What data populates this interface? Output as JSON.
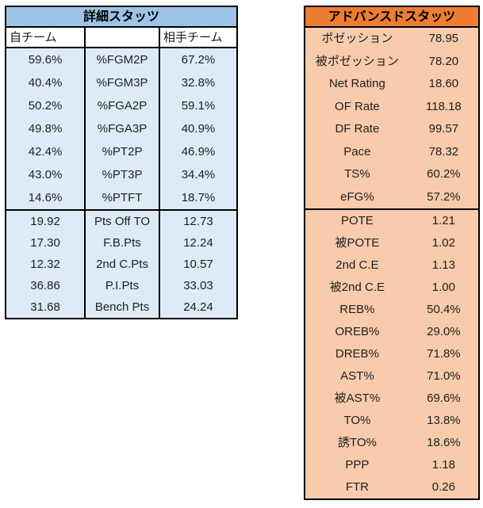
{
  "chart_data": [
    {
      "type": "table",
      "title": "詳細スタッツ",
      "column_headers": [
        "自チーム",
        "",
        "相手チーム"
      ],
      "colors": {
        "header_bg": "#9DC3E6",
        "subheader_bg": "#FFFFFF",
        "row_bg": "#DEEBF7",
        "border": "#000000",
        "header_text": "#000000",
        "text": "#202020"
      },
      "sections": [
        {
          "rows": [
            [
              "59.6%",
              "%FGM2P",
              "67.2%"
            ],
            [
              "40.4%",
              "%FGM3P",
              "32.8%"
            ],
            [
              "50.2%",
              "%FGA2P",
              "59.1%"
            ],
            [
              "49.8%",
              "%FGA3P",
              "40.9%"
            ],
            [
              "42.4%",
              "%PT2P",
              "46.9%"
            ],
            [
              "43.0%",
              "%PT3P",
              "34.4%"
            ],
            [
              "14.6%",
              "%PTFT",
              "18.7%"
            ]
          ]
        },
        {
          "rows": [
            [
              "19.92",
              "Pts Off TO",
              "12.73"
            ],
            [
              "17.30",
              "F.B.Pts",
              "12.24"
            ],
            [
              "12.32",
              "2nd C.Pts",
              "10.57"
            ],
            [
              "36.86",
              "P.I.Pts",
              "33.03"
            ],
            [
              "31.68",
              "Bench Pts",
              "24.24"
            ]
          ]
        }
      ]
    },
    {
      "type": "table",
      "title": "アドバンスドスタッツ",
      "colors": {
        "header_bg": "#ED7D31",
        "row_bg": "#F8CBAD",
        "border": "#000000",
        "header_text": "#000000",
        "text": "#202020"
      },
      "sections": [
        {
          "rows": [
            [
              "ポゼッション",
              "78.95"
            ],
            [
              "被ポゼッション",
              "78.20"
            ],
            [
              "Net Rating",
              "18.60"
            ],
            [
              "OF Rate",
              "118.18"
            ],
            [
              "DF Rate",
              "99.57"
            ],
            [
              "Pace",
              "78.32"
            ],
            [
              "TS%",
              "60.2%"
            ],
            [
              "eFG%",
              "57.2%"
            ]
          ]
        },
        {
          "rows": [
            [
              "POTE",
              "1.21"
            ],
            [
              "被POTE",
              "1.02"
            ],
            [
              "2nd C.E",
              "1.13"
            ],
            [
              "被2nd C.E",
              "1.00"
            ],
            [
              "REB%",
              "50.4%"
            ],
            [
              "OREB%",
              "29.0%"
            ],
            [
              "DREB%",
              "71.8%"
            ],
            [
              "AST%",
              "71.0%"
            ],
            [
              "被AST%",
              "69.6%"
            ],
            [
              "TO%",
              "13.8%"
            ],
            [
              "誘TO%",
              "18.6%"
            ],
            [
              "PPP",
              "1.18"
            ],
            [
              "FTR",
              "0.26"
            ]
          ]
        }
      ]
    }
  ]
}
